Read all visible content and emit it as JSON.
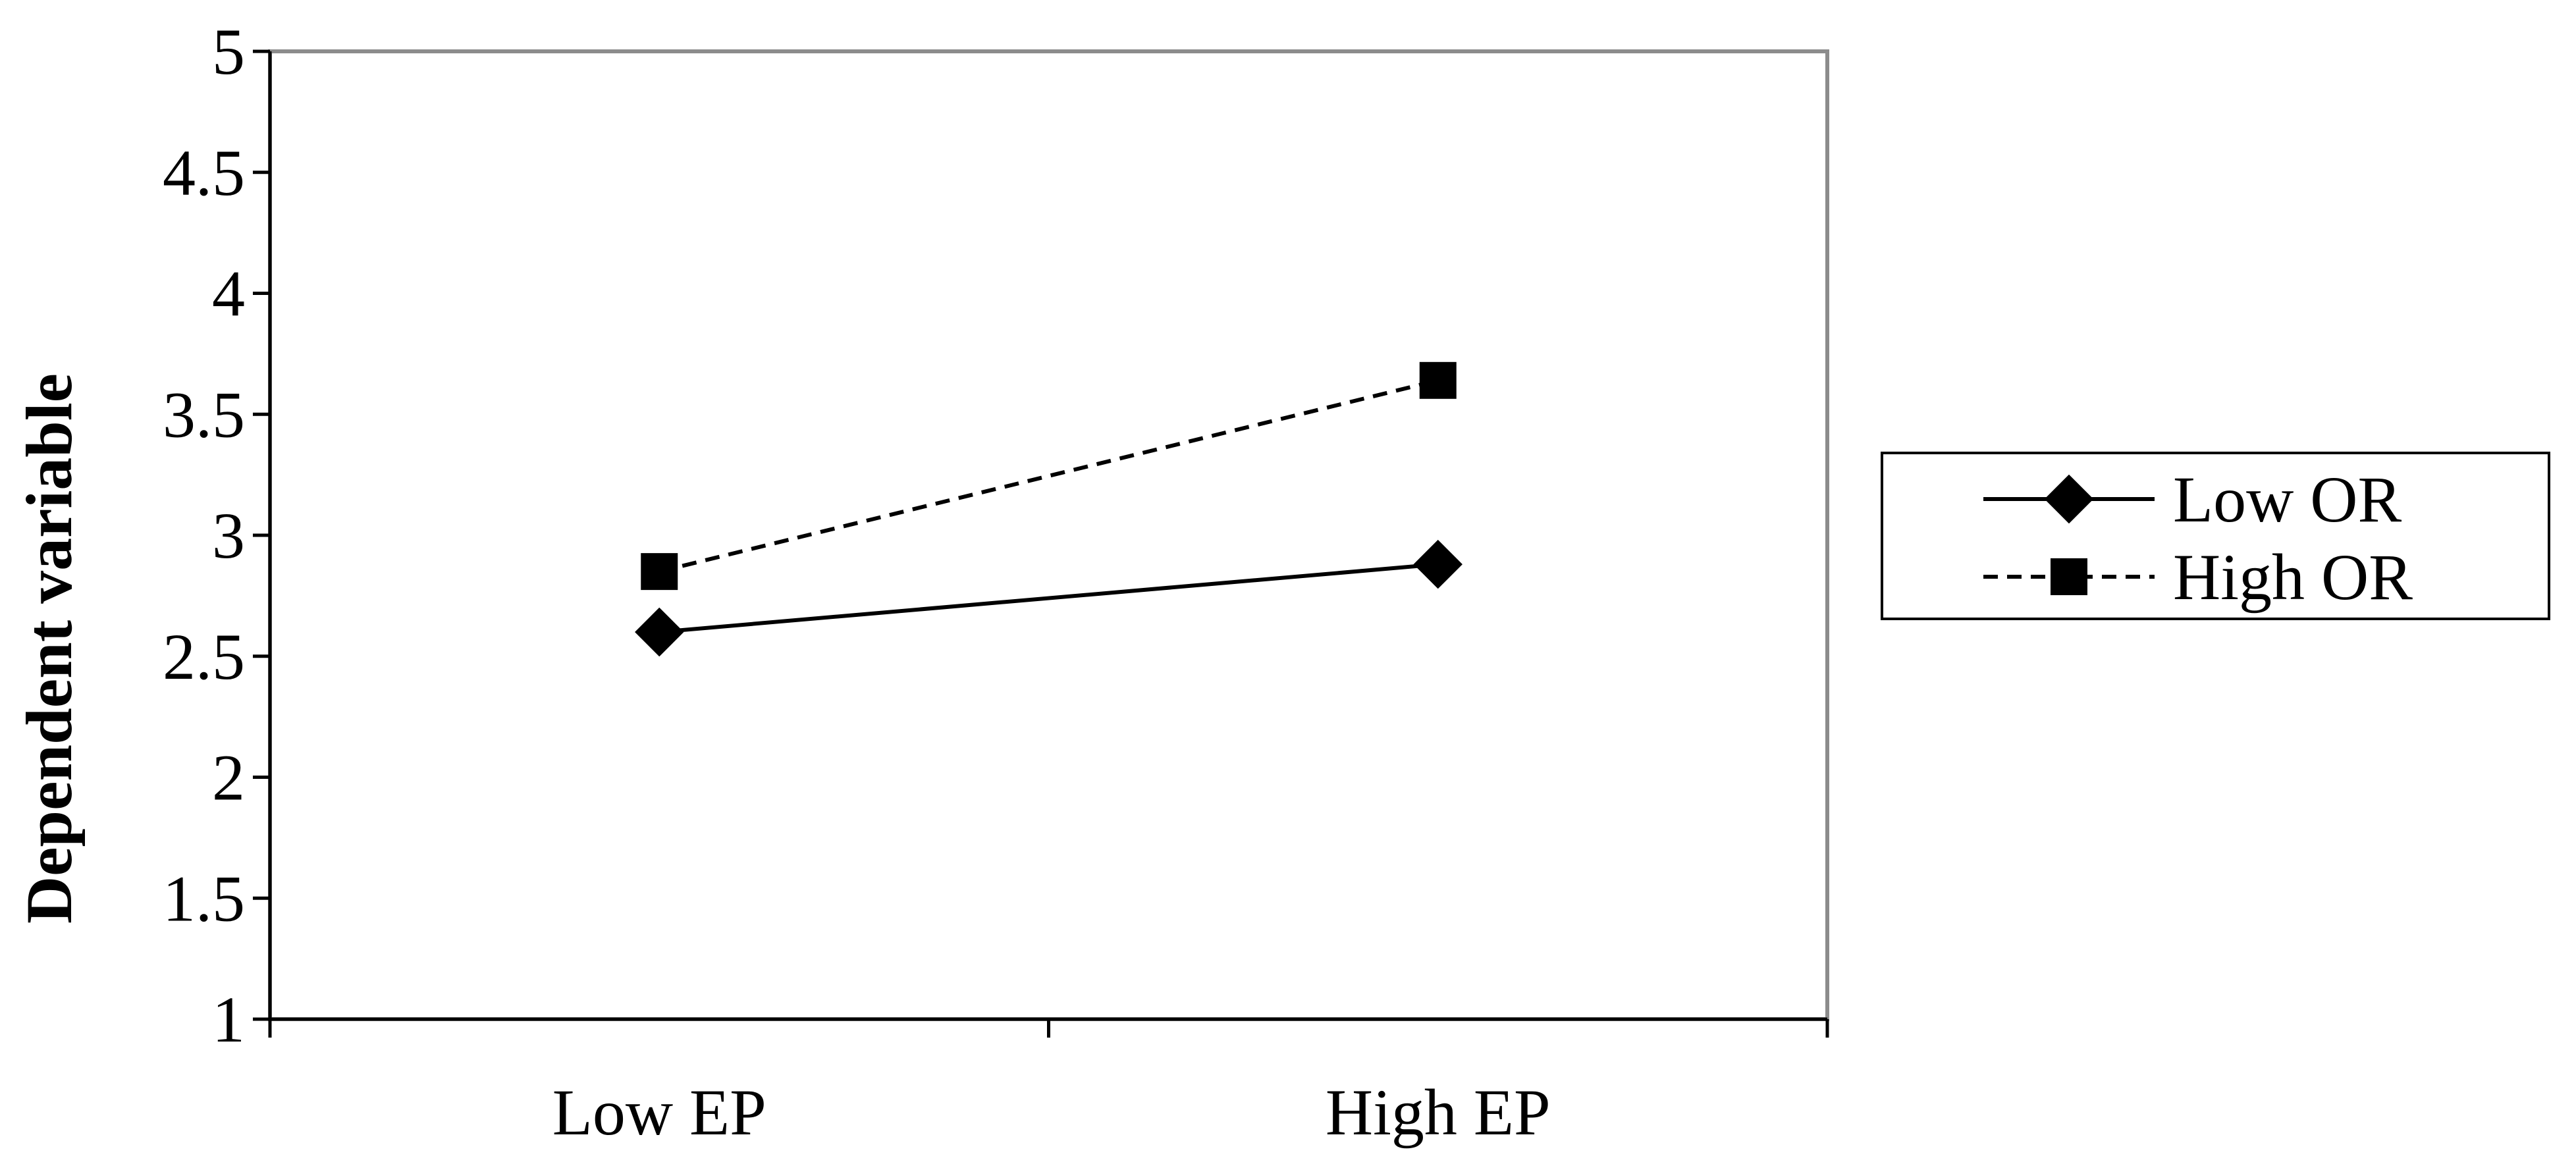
{
  "chart_data": {
    "type": "line",
    "title": "",
    "xlabel": "",
    "ylabel": "Dependent variable",
    "categories": [
      "Low EP",
      "High EP"
    ],
    "ylim": [
      1,
      5
    ],
    "yticks": [
      "1",
      "1.5",
      "2",
      "2.5",
      "3",
      "3.5",
      "4",
      "4.5",
      "5"
    ],
    "grid": false,
    "legend_position": "right",
    "series": [
      {
        "name": "Low OR",
        "values": [
          2.6,
          2.88
        ],
        "line_style": "solid",
        "marker": "diamond",
        "color": "#000000"
      },
      {
        "name": "High OR",
        "values": [
          2.85,
          3.64
        ],
        "line_style": "dashed",
        "marker": "square",
        "color": "#000000"
      }
    ]
  },
  "colors": {
    "frame": "#8c8c8c",
    "axis": "#000000",
    "ink": "#000000",
    "background": "#ffffff"
  }
}
